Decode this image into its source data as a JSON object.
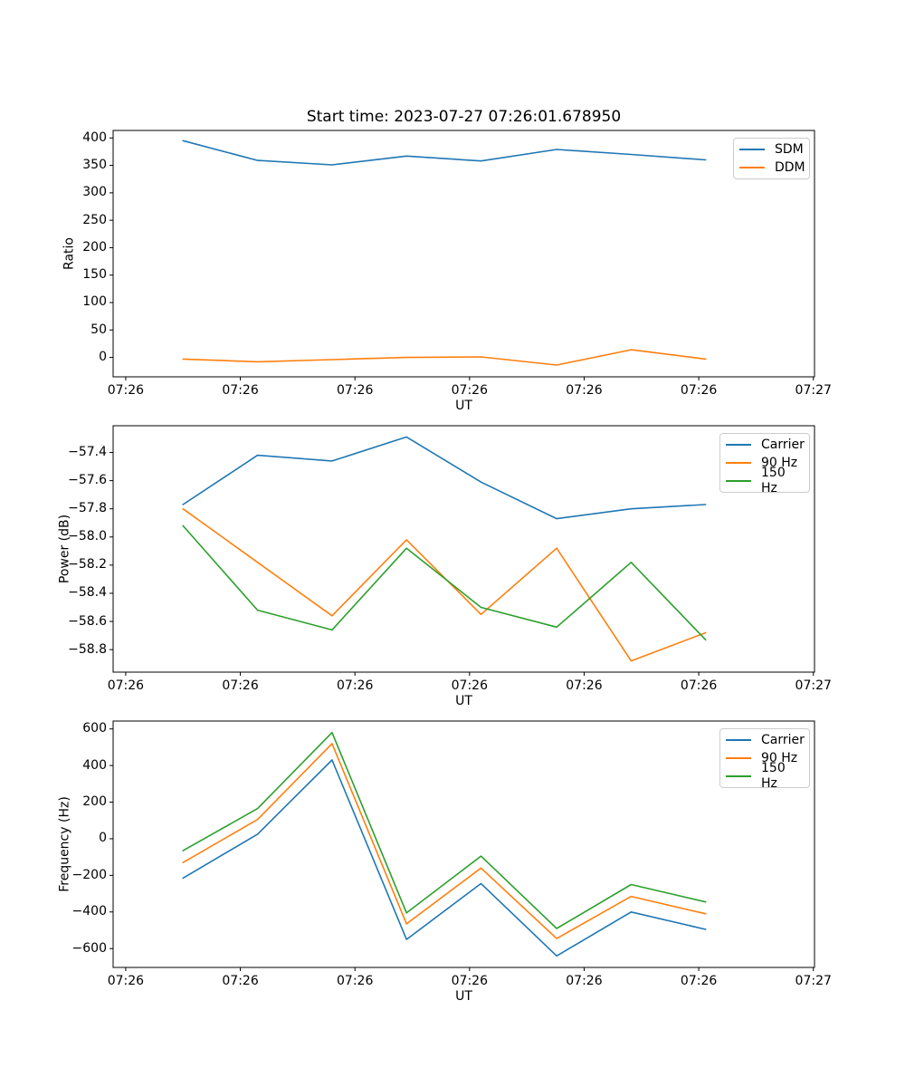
{
  "figure": {
    "background": "#ffffff"
  },
  "colors": {
    "C0": "#1f77b4",
    "C1": "#ff7f0e",
    "C2": "#2ca02c",
    "spine": "#000000",
    "legend_border": "#cccccc"
  },
  "x_axis": {
    "label": "UT",
    "tick_seconds": [
      0,
      10,
      20,
      30,
      40,
      50,
      60
    ],
    "tick_labels": [
      "07:26",
      "07:26",
      "07:26",
      "07:26",
      "07:26",
      "07:26",
      "07:27"
    ],
    "xlim_seconds": [
      -1.1,
      60.1
    ],
    "point_seconds": [
      5.0,
      11.5,
      18.0,
      24.5,
      31.0,
      37.6,
      44.1,
      50.6
    ]
  },
  "chart_data": [
    {
      "type": "line",
      "title": "Start time: 2023-07-27 07:26:01.678950",
      "xlabel": "UT",
      "ylabel": "Ratio",
      "ylim": [
        -35.4,
        413.7
      ],
      "grid": false,
      "legend_position": "upper right",
      "yticks": {
        "values": [
          0,
          50,
          100,
          150,
          200,
          250,
          300,
          350,
          400
        ],
        "labels": [
          "0",
          "50",
          "100",
          "150",
          "200",
          "250",
          "300",
          "350",
          "400"
        ]
      },
      "series": [
        {
          "name": "SDM",
          "color_key": "C0",
          "values": [
            395,
            359,
            351,
            367,
            358,
            379,
            370,
            360
          ]
        },
        {
          "name": "DDM",
          "color_key": "C1",
          "values": [
            -3,
            -8,
            -4,
            0,
            1,
            -14,
            14,
            -3
          ]
        }
      ]
    },
    {
      "type": "line",
      "xlabel": "UT",
      "ylabel": "Power (dB)",
      "ylim": [
        -58.96,
        -57.21
      ],
      "grid": false,
      "legend_position": "upper right",
      "yticks": {
        "values": [
          -57.4,
          -57.6,
          -57.8,
          -58.0,
          -58.2,
          -58.4,
          -58.6,
          -58.8
        ],
        "labels": [
          "−57.4",
          "−57.6",
          "−57.8",
          "−58.0",
          "−58.2",
          "−58.4",
          "−58.6",
          "−58.8"
        ]
      },
      "series": [
        {
          "name": "Carrier",
          "color_key": "C0",
          "values": [
            -57.77,
            -57.42,
            -57.46,
            -57.29,
            -57.61,
            -57.87,
            -57.8,
            -57.77
          ]
        },
        {
          "name": "90 Hz",
          "color_key": "C1",
          "values": [
            -57.8,
            -58.18,
            -58.56,
            -58.02,
            -58.55,
            -58.08,
            -58.88,
            -58.68
          ]
        },
        {
          "name": "150 Hz",
          "color_key": "C2",
          "values": [
            -57.92,
            -58.52,
            -58.66,
            -58.08,
            -58.5,
            -58.64,
            -58.18,
            -58.73
          ]
        }
      ]
    },
    {
      "type": "line",
      "xlabel": "UT",
      "ylabel": "Frequency (Hz)",
      "ylim": [
        -703,
        643
      ],
      "grid": false,
      "legend_position": "upper right",
      "yticks": {
        "values": [
          600,
          400,
          200,
          0,
          -200,
          -400,
          -600
        ],
        "labels": [
          "600",
          "400",
          "200",
          "0",
          "−200",
          "−400",
          "−600"
        ]
      },
      "series": [
        {
          "name": "Carrier",
          "color_key": "C0",
          "values": [
            -215,
            25,
            430,
            -550,
            -245,
            -640,
            -400,
            -495
          ]
        },
        {
          "name": "90 Hz",
          "color_key": "C1",
          "values": [
            -130,
            105,
            520,
            -465,
            -160,
            -545,
            -315,
            -410
          ]
        },
        {
          "name": "150 Hz",
          "color_key": "C2",
          "values": [
            -65,
            165,
            580,
            -405,
            -95,
            -490,
            -250,
            -345
          ]
        }
      ]
    }
  ]
}
